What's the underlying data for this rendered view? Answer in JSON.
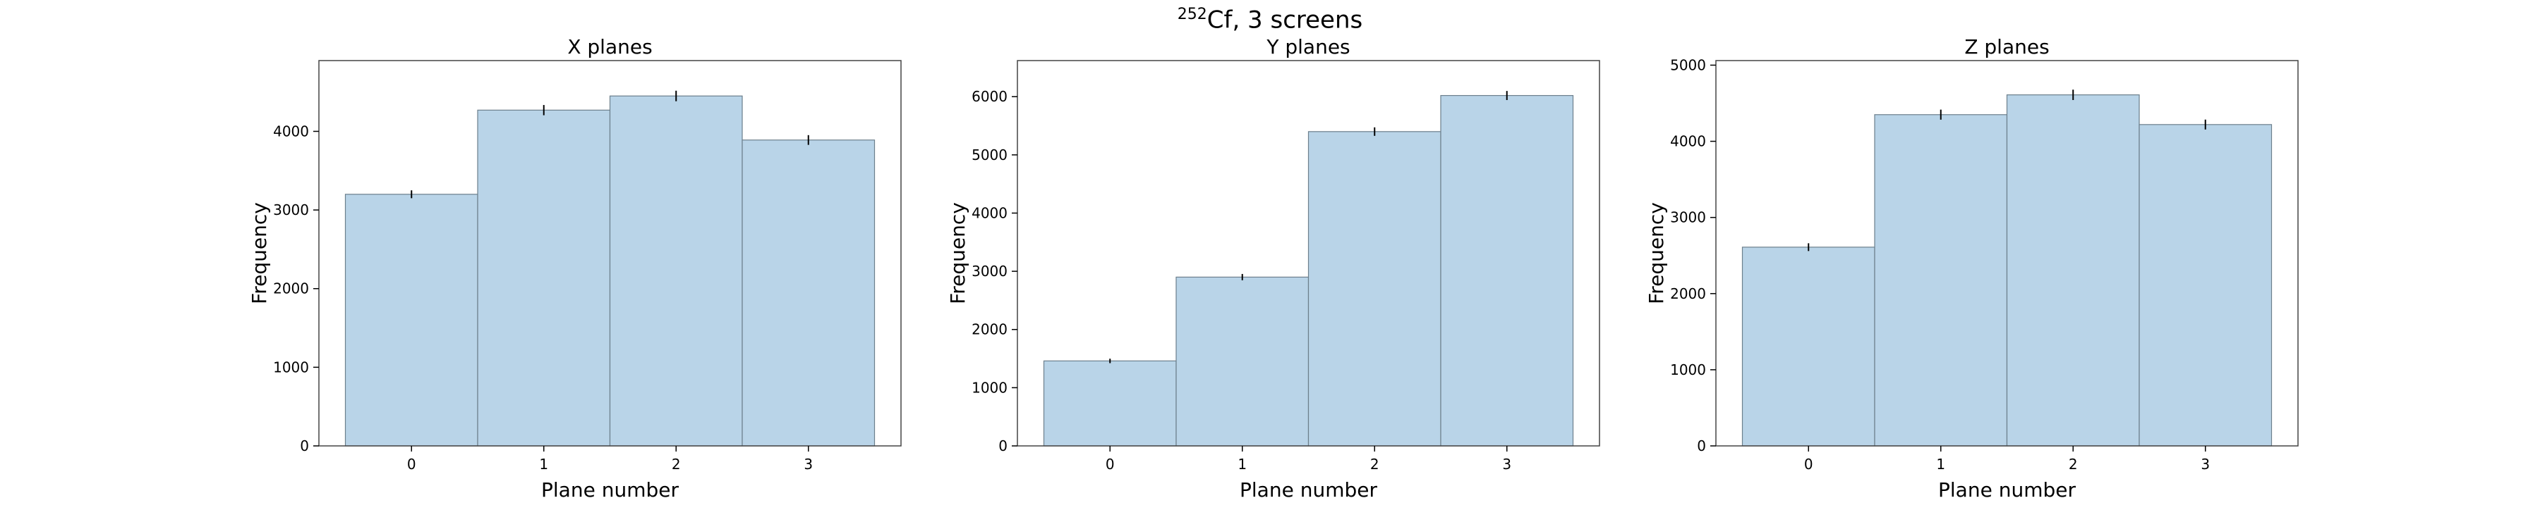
{
  "figure": {
    "suptitle_sup": "252",
    "suptitle_main": "Cf, 3 screens",
    "bar_color": "#b9d4e8"
  },
  "chart_data": [
    {
      "type": "bar",
      "title": "X planes",
      "xlabel": "Plane number",
      "ylabel": "Frequency",
      "categories": [
        "0",
        "1",
        "2",
        "3"
      ],
      "values": [
        3200,
        4270,
        4450,
        3890
      ],
      "errors": [
        50,
        65,
        67,
        62
      ],
      "ylim": [
        0,
        4900
      ],
      "yticks": [
        0,
        1000,
        2000,
        3000,
        4000
      ]
    },
    {
      "type": "bar",
      "title": "Y planes",
      "xlabel": "Plane number",
      "ylabel": "Frequency",
      "categories": [
        "0",
        "1",
        "2",
        "3"
      ],
      "values": [
        1460,
        2900,
        5400,
        6020
      ],
      "errors": [
        38,
        54,
        73,
        78
      ],
      "ylim": [
        0,
        6620
      ],
      "yticks": [
        0,
        1000,
        2000,
        3000,
        4000,
        5000,
        6000
      ]
    },
    {
      "type": "bar",
      "title": "Z planes",
      "xlabel": "Plane number",
      "ylabel": "Frequency",
      "categories": [
        "0",
        "1",
        "2",
        "3"
      ],
      "values": [
        2610,
        4350,
        4610,
        4220
      ],
      "errors": [
        51,
        66,
        68,
        65
      ],
      "ylim": [
        0,
        5060
      ],
      "yticks": [
        0,
        1000,
        2000,
        3000,
        4000,
        5000
      ]
    }
  ]
}
